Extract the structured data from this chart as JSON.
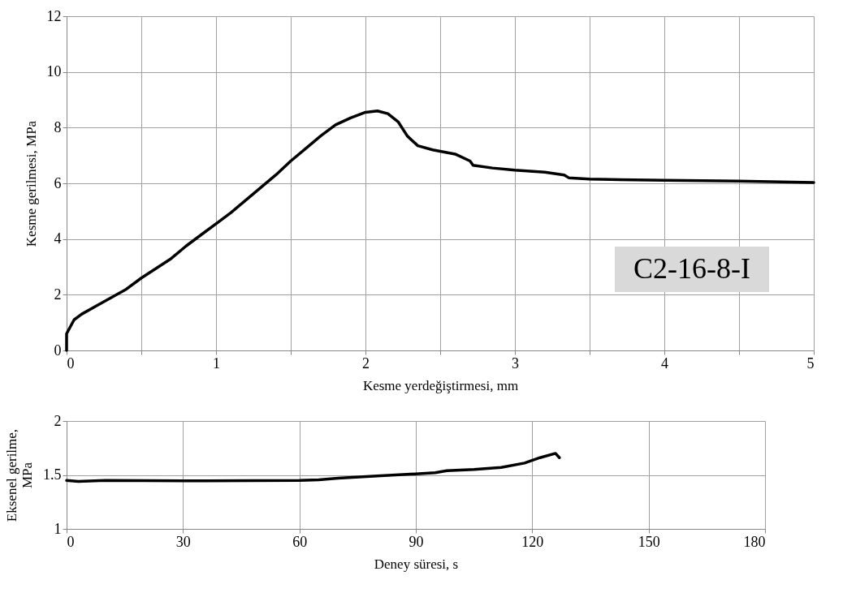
{
  "chart_data": [
    {
      "type": "line",
      "xlabel": "Kesme yerdeğiştirmesi, mm",
      "ylabel": "Kesme gerilmesi, MPa",
      "annotations": [
        "C2-16-8-I"
      ],
      "grid": true,
      "xlim": [
        0,
        5
      ],
      "xticks": [
        0,
        {
          "value": 0.5,
          "label": null
        },
        1,
        {
          "value": 1.5,
          "label": null
        },
        2,
        {
          "value": 2.5,
          "label": null
        },
        3,
        {
          "value": 3.5,
          "label": null
        },
        4,
        {
          "value": 4.5,
          "label": null
        },
        5
      ],
      "ylim": [
        0,
        12
      ],
      "yticks": [
        0,
        2,
        4,
        6,
        8,
        10,
        12
      ],
      "series": [
        {
          "color": "#000000",
          "x": [
            0,
            0,
            0.02,
            0.05,
            0.1,
            0.2,
            0.3,
            0.4,
            0.5,
            0.6,
            0.7,
            0.8,
            0.9,
            1.0,
            1.1,
            1.2,
            1.3,
            1.4,
            1.5,
            1.6,
            1.7,
            1.8,
            1.9,
            2.0,
            2.08,
            2.15,
            2.22,
            2.28,
            2.35,
            2.45,
            2.6,
            2.7,
            2.72,
            2.85,
            3.0,
            3.2,
            3.33,
            3.36,
            3.5,
            4.0,
            4.5,
            5.0
          ],
          "values": [
            0,
            0.6,
            0.8,
            1.1,
            1.3,
            1.6,
            1.9,
            2.2,
            2.6,
            2.95,
            3.3,
            3.75,
            4.15,
            4.55,
            4.95,
            5.4,
            5.85,
            6.3,
            6.8,
            7.25,
            7.7,
            8.1,
            8.35,
            8.55,
            8.6,
            8.5,
            8.2,
            7.7,
            7.35,
            7.2,
            7.05,
            6.8,
            6.65,
            6.55,
            6.47,
            6.4,
            6.3,
            6.2,
            6.15,
            6.11,
            6.08,
            6.03
          ]
        }
      ]
    },
    {
      "type": "line",
      "xlabel": "Deney süresi, s",
      "ylabel": "Eksenel gerilme, MPa",
      "grid": true,
      "xlim": [
        0,
        180
      ],
      "xticks": [
        0,
        30,
        60,
        90,
        120,
        150,
        180
      ],
      "ylim": [
        1,
        2
      ],
      "yticks": [
        1,
        1.5,
        2
      ],
      "series": [
        {
          "color": "#000000",
          "x": [
            0,
            3,
            10,
            30,
            60,
            65,
            70,
            80,
            90,
            95,
            98,
            105,
            112,
            118,
            122,
            126,
            127
          ],
          "values": [
            1.45,
            1.44,
            1.45,
            1.445,
            1.45,
            1.455,
            1.47,
            1.49,
            1.51,
            1.52,
            1.54,
            1.55,
            1.57,
            1.61,
            1.66,
            1.7,
            1.66
          ]
        }
      ]
    }
  ]
}
